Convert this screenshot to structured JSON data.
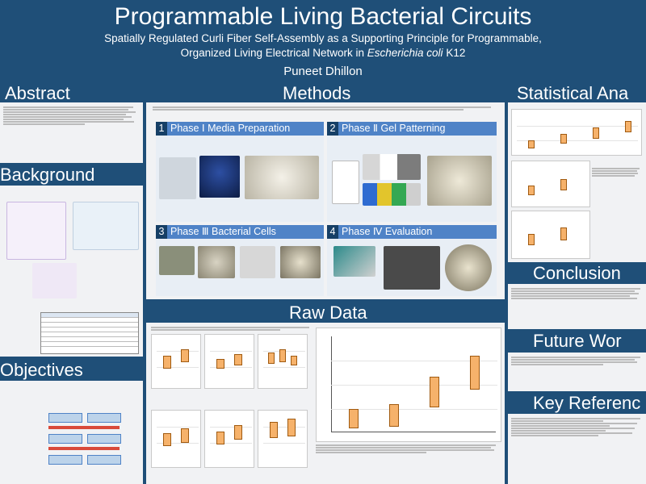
{
  "header": {
    "title": "Programmable Living Bacterial Circuits",
    "subtitle_line1": "Spatially Regulated Curli Fiber Self-Assembly as a Supporting Principle for Programmable,",
    "subtitle_line2_prefix": "Organized Living Electrical Network in ",
    "subtitle_line2_organism": "Escherichia coli",
    "subtitle_line2_suffix": " K12",
    "author": "Puneet Dhillon"
  },
  "sections": {
    "abstract": "Abstract",
    "background": "Background",
    "objectives": "Objectives",
    "methods": "Methods",
    "raw_data": "Raw Data",
    "statistical": "Statistical Ana",
    "conclusion": "Conclusion",
    "future_work": "Future Wor",
    "key_references": "Key Referenc"
  },
  "phases": [
    {
      "num": "1",
      "title": "Phase Ⅰ Media Preparation"
    },
    {
      "num": "2",
      "title": "Phase Ⅱ Gel Patterning"
    },
    {
      "num": "3",
      "title": "Phase Ⅲ Bacterial Cells"
    },
    {
      "num": "4",
      "title": "Phase Ⅳ Evaluation"
    }
  ],
  "colors": {
    "background": "#1f4f78",
    "panel": "#f1f2f4",
    "phase_header": "#4f83c7",
    "phase_number": "#163f66",
    "box_fill": "#f6b26b"
  }
}
